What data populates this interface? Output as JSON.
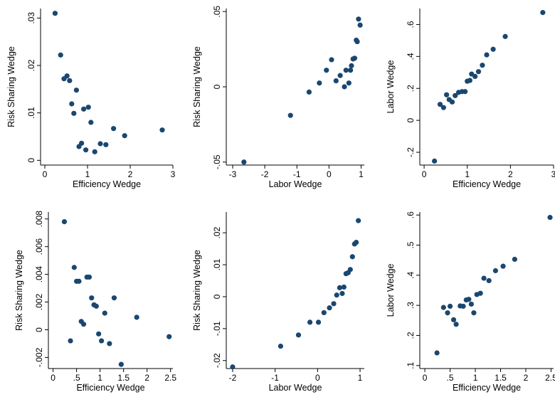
{
  "chart_data": [
    {
      "type": "scatter",
      "xlabel": "Efficiency Wedge",
      "ylabel": "Risk Sharing Wedge",
      "xlim": [
        -0.1,
        3.0
      ],
      "ylim": [
        -0.001,
        0.032
      ],
      "xticks": [
        0,
        1,
        2,
        3
      ],
      "xtick_labels": [
        "0",
        "1",
        "2",
        "3"
      ],
      "yticks": [
        0,
        0.01,
        0.02,
        0.03
      ],
      "ytick_labels": [
        "0",
        ".01",
        ".02",
        ".03"
      ],
      "points": [
        [
          0.24,
          0.031
        ],
        [
          0.37,
          0.0222
        ],
        [
          0.45,
          0.0172
        ],
        [
          0.52,
          0.0178
        ],
        [
          0.58,
          0.0168
        ],
        [
          0.63,
          0.0119
        ],
        [
          0.68,
          0.0099
        ],
        [
          0.74,
          0.0148
        ],
        [
          0.8,
          0.0029
        ],
        [
          0.86,
          0.0036
        ],
        [
          0.91,
          0.0108
        ],
        [
          0.96,
          0.0022
        ],
        [
          1.02,
          0.0112
        ],
        [
          1.08,
          0.008
        ],
        [
          1.17,
          0.0018
        ],
        [
          1.3,
          0.0035
        ],
        [
          1.43,
          0.0033
        ],
        [
          1.61,
          0.0067
        ],
        [
          1.87,
          0.0052
        ],
        [
          2.75,
          0.0064
        ]
      ]
    },
    {
      "type": "scatter",
      "xlabel": "Labor Wedge",
      "ylabel": "Risk Sharing Wedge",
      "xlim": [
        -3.2,
        1.1
      ],
      "ylim": [
        -0.052,
        0.052
      ],
      "xticks": [
        -3,
        -2,
        -1,
        0,
        1
      ],
      "xtick_labels": [
        "-3",
        "-2",
        "-1",
        "0",
        "1"
      ],
      "yticks": [
        -0.05,
        0,
        0.05
      ],
      "ytick_labels": [
        "-.05",
        "0",
        ".05"
      ],
      "points": [
        [
          -2.65,
          -0.05
        ],
        [
          -1.2,
          -0.019
        ],
        [
          -0.62,
          -0.0035
        ],
        [
          -0.3,
          0.0025
        ],
        [
          -0.08,
          0.011
        ],
        [
          0.08,
          0.018
        ],
        [
          0.22,
          0.004
        ],
        [
          0.35,
          0.0075
        ],
        [
          0.48,
          0.0
        ],
        [
          0.53,
          0.011
        ],
        [
          0.62,
          0.0025
        ],
        [
          0.67,
          0.011
        ],
        [
          0.7,
          0.014
        ],
        [
          0.75,
          0.0185
        ],
        [
          0.8,
          0.019
        ],
        [
          0.85,
          0.031
        ],
        [
          0.88,
          0.03
        ],
        [
          0.92,
          0.045
        ],
        [
          0.97,
          0.041
        ]
      ]
    },
    {
      "type": "scatter",
      "xlabel": "Efficiency Wedge",
      "ylabel": "Labor Wedge",
      "xlim": [
        -0.1,
        3.0
      ],
      "ylim": [
        -0.28,
        0.7
      ],
      "xticks": [
        0,
        1,
        2,
        3
      ],
      "xtick_labels": [
        "0",
        "1",
        "2",
        "3"
      ],
      "yticks": [
        -0.2,
        0,
        0.2,
        0.4,
        0.6
      ],
      "ytick_labels": [
        "-.2",
        "0",
        ".2",
        ".4",
        ".6"
      ],
      "points": [
        [
          0.24,
          -0.255
        ],
        [
          0.37,
          0.1
        ],
        [
          0.45,
          0.08
        ],
        [
          0.52,
          0.16
        ],
        [
          0.58,
          0.13
        ],
        [
          0.65,
          0.115
        ],
        [
          0.72,
          0.155
        ],
        [
          0.8,
          0.175
        ],
        [
          0.88,
          0.18
        ],
        [
          0.95,
          0.18
        ],
        [
          1.0,
          0.245
        ],
        [
          1.06,
          0.25
        ],
        [
          1.1,
          0.29
        ],
        [
          1.18,
          0.275
        ],
        [
          1.26,
          0.305
        ],
        [
          1.35,
          0.345
        ],
        [
          1.45,
          0.41
        ],
        [
          1.6,
          0.445
        ],
        [
          1.88,
          0.525
        ],
        [
          2.75,
          0.675
        ]
      ]
    },
    {
      "type": "scatter",
      "xlabel": "Efficiency Wedge",
      "ylabel": "Risk Sharing Wedge",
      "xlim": [
        -0.1,
        2.55
      ],
      "ylim": [
        -0.0028,
        0.0085
      ],
      "xticks": [
        0,
        0.5,
        1,
        1.5,
        2,
        2.5
      ],
      "xtick_labels": [
        "0",
        ".5",
        "1",
        "1.5",
        "2",
        "2.5"
      ],
      "yticks": [
        -0.002,
        0,
        0.002,
        0.004,
        0.006,
        0.008
      ],
      "ytick_labels": [
        "-.002",
        "0",
        ".002",
        ".004",
        ".006",
        ".008"
      ],
      "points": [
        [
          0.24,
          0.0078
        ],
        [
          0.37,
          -0.0008
        ],
        [
          0.45,
          0.0045
        ],
        [
          0.5,
          0.0035
        ],
        [
          0.55,
          0.0035
        ],
        [
          0.6,
          0.0006
        ],
        [
          0.65,
          0.0004
        ],
        [
          0.72,
          0.0038
        ],
        [
          0.77,
          0.0038
        ],
        [
          0.82,
          0.0023
        ],
        [
          0.87,
          0.0018
        ],
        [
          0.92,
          0.0017
        ],
        [
          0.97,
          -0.0003
        ],
        [
          1.03,
          -0.0008
        ],
        [
          1.1,
          0.0012
        ],
        [
          1.2,
          -0.001
        ],
        [
          1.3,
          0.0023
        ],
        [
          1.45,
          -0.0025
        ],
        [
          1.78,
          0.0009
        ],
        [
          2.47,
          -0.0005
        ]
      ]
    },
    {
      "type": "scatter",
      "xlabel": "Labor Wedge",
      "ylabel": "Risk Sharing Wedge",
      "xlim": [
        -2.15,
        1.1
      ],
      "ylim": [
        -0.0225,
        0.0265
      ],
      "xticks": [
        -2,
        -1,
        0,
        1
      ],
      "xtick_labels": [
        "-2",
        "-1",
        "0",
        "1"
      ],
      "yticks": [
        -0.02,
        -0.01,
        0,
        0.01,
        0.02
      ],
      "ytick_labels": [
        "-.02",
        "-.01",
        "0",
        ".01",
        ".02"
      ],
      "points": [
        [
          -2.0,
          -0.022
        ],
        [
          -0.87,
          -0.0155
        ],
        [
          -0.45,
          -0.012
        ],
        [
          -0.18,
          -0.008
        ],
        [
          0.02,
          -0.008
        ],
        [
          0.15,
          -0.005
        ],
        [
          0.28,
          -0.0035
        ],
        [
          0.38,
          -0.0022
        ],
        [
          0.45,
          0.0005
        ],
        [
          0.52,
          0.0028
        ],
        [
          0.58,
          0.001
        ],
        [
          0.62,
          0.003
        ],
        [
          0.67,
          0.0072
        ],
        [
          0.72,
          0.0075
        ],
        [
          0.77,
          0.0085
        ],
        [
          0.82,
          0.0125
        ],
        [
          0.87,
          0.0165
        ],
        [
          0.91,
          0.017
        ],
        [
          0.96,
          0.0238
        ]
      ]
    },
    {
      "type": "scatter",
      "xlabel": "Efficiency Wedge",
      "ylabel": "Labor Wedge",
      "xlim": [
        -0.1,
        2.55
      ],
      "ylim": [
        0.09,
        0.61
      ],
      "xticks": [
        0,
        0.5,
        1,
        1.5,
        2,
        2.5
      ],
      "xtick_labels": [
        "0",
        ".5",
        "1",
        "1.5",
        "2",
        "2.5"
      ],
      "yticks": [
        0.1,
        0.2,
        0.3,
        0.4,
        0.5,
        0.6
      ],
      "ytick_labels": [
        ".1",
        ".2",
        ".3",
        ".4",
        ".5",
        ".6"
      ],
      "points": [
        [
          0.24,
          0.142
        ],
        [
          0.37,
          0.293
        ],
        [
          0.45,
          0.275
        ],
        [
          0.5,
          0.297
        ],
        [
          0.57,
          0.252
        ],
        [
          0.62,
          0.237
        ],
        [
          0.7,
          0.298
        ],
        [
          0.76,
          0.297
        ],
        [
          0.82,
          0.318
        ],
        [
          0.87,
          0.32
        ],
        [
          0.92,
          0.304
        ],
        [
          0.97,
          0.275
        ],
        [
          1.03,
          0.336
        ],
        [
          1.1,
          0.34
        ],
        [
          1.17,
          0.39
        ],
        [
          1.27,
          0.382
        ],
        [
          1.4,
          0.415
        ],
        [
          1.55,
          0.43
        ],
        [
          1.78,
          0.453
        ],
        [
          2.48,
          0.592
        ]
      ]
    }
  ],
  "style": {
    "marker_color": "#1a476f",
    "axis_color": "#000000"
  }
}
